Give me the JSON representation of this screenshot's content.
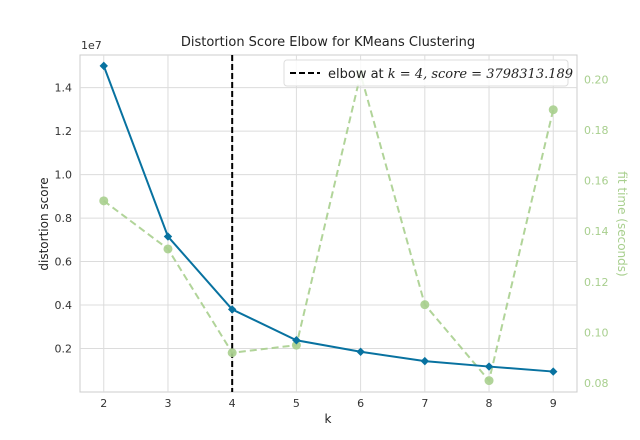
{
  "chart_data": {
    "type": "line",
    "title": "Distortion Score Elbow for KMeans Clustering",
    "xlabel": "k",
    "ylabel": "distortion score",
    "y2label": "fit time (seconds)",
    "y_offset_label": "1e7",
    "x": [
      2,
      3,
      4,
      5,
      6,
      7,
      8,
      9
    ],
    "xlim": [
      1.63,
      9.37
    ],
    "ylim": [
      0,
      15500000
    ],
    "y2lim": [
      0.0765,
      0.2096
    ],
    "xticks": [
      2,
      3,
      4,
      5,
      6,
      7,
      8,
      9
    ],
    "yticks": [
      2000000,
      4000000,
      6000000,
      8000000,
      10000000,
      12000000,
      14000000
    ],
    "ytick_labels": [
      "0.2",
      "0.4",
      "0.6",
      "0.8",
      "1.0",
      "1.2",
      "1.4"
    ],
    "y2ticks": [
      0.08,
      0.1,
      0.12,
      0.14,
      0.16,
      0.18,
      0.2
    ],
    "y2tick_labels": [
      "0.08",
      "0.10",
      "0.12",
      "0.14",
      "0.16",
      "0.18",
      "0.20"
    ],
    "series": [
      {
        "name": "distortion score",
        "axis": "left",
        "color": "#0072B2",
        "values": [
          15000000,
          7150000,
          3798313.189,
          2380000,
          1850000,
          1420000,
          1170000,
          940000
        ]
      },
      {
        "name": "fit time",
        "axis": "right",
        "color": "#A8CF8E",
        "values": [
          0.152,
          0.133,
          0.092,
          0.095,
          0.202,
          0.111,
          0.081,
          0.188
        ]
      }
    ],
    "elbow": {
      "k": 4,
      "score": "3798313.189"
    },
    "legend": {
      "placement": "top-right",
      "prefix": "elbow at ",
      "math": "k = 4, score = 3798313.189"
    },
    "grid": true
  }
}
